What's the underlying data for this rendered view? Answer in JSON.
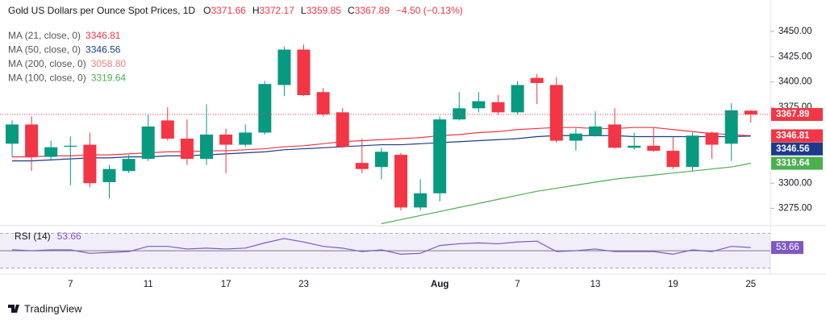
{
  "chart_data": {
    "type": "candlestick",
    "title": "Gold US Dollars per Ounce Spot Prices, 1D",
    "ohlc_prefixes": [
      "O",
      "H",
      "L",
      "C"
    ],
    "change": "−4.50 (−0.13%)",
    "categories": [
      null,
      null,
      null,
      "7",
      null,
      null,
      null,
      "11",
      null,
      null,
      null,
      "17",
      null,
      null,
      null,
      "23",
      null,
      null,
      null,
      null,
      null,
      null,
      "Aug",
      null,
      null,
      null,
      "7",
      null,
      null,
      null,
      "13",
      null,
      null,
      null,
      "19",
      null,
      null,
      null,
      "25"
    ],
    "open": [
      3339,
      3358,
      3326,
      3336,
      3338,
      3301,
      3312,
      3324,
      3362,
      3344,
      3324,
      3348,
      3338,
      3350,
      3397,
      3432,
      3390,
      3370,
      3320,
      3316,
      3328,
      3276,
      3290,
      3363,
      3374,
      3380,
      3370,
      3404,
      3397,
      3342,
      3347,
      3358,
      3335,
      3337,
      3332,
      3316,
      3350,
      3339,
      3371.66
    ],
    "high": [
      3362,
      3366,
      3342,
      3346,
      3350,
      3318,
      3328,
      3368,
      3375,
      3363,
      3378,
      3354,
      3358,
      3401,
      3435,
      3437,
      3394,
      3374,
      3344,
      3335,
      3330,
      3304,
      3366,
      3390,
      3390,
      3387,
      3401,
      3408,
      3405,
      3354,
      3371,
      3374,
      3350,
      3355,
      3346,
      3350,
      3351,
      3379,
      3372.17
    ],
    "low": [
      3326,
      3312,
      3322,
      3298,
      3296,
      3285,
      3310,
      3322,
      3342,
      3318,
      3318,
      3310,
      3336,
      3348,
      3386,
      3386,
      3366,
      3335,
      3310,
      3304,
      3273,
      3273,
      3282,
      3362,
      3370,
      3368,
      3368,
      3378,
      3340,
      3332,
      3346,
      3334,
      3333,
      3331,
      3314,
      3312,
      3324,
      3322,
      3359.85
    ],
    "close": [
      3358,
      3326,
      3335.5,
      3337,
      3300,
      3314,
      3324,
      3356,
      3344,
      3324,
      3348,
      3338,
      3350,
      3398,
      3432,
      3387,
      3368,
      3336,
      3314,
      3331,
      3276,
      3290,
      3363,
      3374,
      3381,
      3370,
      3397,
      3399,
      3342,
      3349,
      3356,
      3335,
      3337,
      3332,
      3316,
      3347,
      3338,
      3372,
      3367.89
    ],
    "up_color": "#089981",
    "down_color": "#f23645",
    "series": [
      {
        "name": "MA (21, close, 0)",
        "color": "#f23645",
        "values": [
          3326,
          3326,
          3327,
          3327,
          3328,
          3328,
          3329,
          3330,
          3331,
          3331,
          3332,
          3332,
          3333,
          3334,
          3336,
          3337,
          3339,
          3341,
          3342,
          3343,
          3344,
          3345,
          3347,
          3348,
          3350,
          3351,
          3353,
          3354,
          3355,
          3355,
          3354,
          3354,
          3355,
          3355,
          3353,
          3351,
          3349,
          3348,
          3346.81
        ]
      },
      {
        "name": "MA (50, close, 0)",
        "color": "#1e3a8a",
        "values": [
          3322,
          3322,
          3323,
          3324,
          3325,
          3325,
          3326,
          3326,
          3327,
          3327,
          3328,
          3329,
          3330,
          3331,
          3333,
          3334,
          3335,
          3336,
          3337,
          3338,
          3338,
          3339,
          3340,
          3341,
          3342,
          3343,
          3344,
          3346,
          3347,
          3347,
          3347,
          3347,
          3346,
          3346,
          3346,
          3346,
          3346,
          3346,
          3346.56
        ]
      },
      {
        "name": "MA (200, close, 0)",
        "color": "#f08080",
        "last_value": {
          "value": 3058.8,
          "label": "3058.80"
        }
      },
      {
        "name": "MA (100, close, 0)",
        "color": "#4caf50",
        "values": [
          null,
          null,
          null,
          null,
          null,
          null,
          null,
          null,
          null,
          null,
          null,
          null,
          null,
          null,
          null,
          null,
          null,
          null,
          null,
          3260,
          3264,
          3268,
          3272,
          3276,
          3280,
          3284,
          3288,
          3292,
          3295,
          3298,
          3301,
          3304,
          3306,
          3308,
          3310,
          3312,
          3314,
          3316,
          3319.64
        ]
      }
    ],
    "ylim": [
      3258,
      3481
    ],
    "yticks": [
      {
        "value": 3275,
        "label": "3275.00"
      },
      {
        "value": 3300,
        "label": "3300.00"
      },
      {
        "value": 3375,
        "label": "3375.00"
      },
      {
        "value": 3400,
        "label": "3400.00"
      },
      {
        "value": 3425,
        "label": "3425.00"
      },
      {
        "value": 3450,
        "label": "3450.00"
      }
    ],
    "rsi": {
      "name": "RSI (14)",
      "color": "#7e57c2",
      "values": [
        51,
        50,
        51,
        51,
        47,
        48,
        49,
        55,
        55,
        52,
        53,
        52,
        53,
        59,
        64,
        60,
        55,
        53,
        49,
        51,
        46,
        47,
        56,
        58,
        59,
        58,
        60,
        61,
        49,
        50,
        52,
        49,
        49,
        49,
        46,
        51,
        49,
        55,
        53.66
      ],
      "ylim": [
        26,
        76
      ],
      "band": [
        30,
        70
      ],
      "midline": 50
    },
    "brand": "TradingView"
  }
}
